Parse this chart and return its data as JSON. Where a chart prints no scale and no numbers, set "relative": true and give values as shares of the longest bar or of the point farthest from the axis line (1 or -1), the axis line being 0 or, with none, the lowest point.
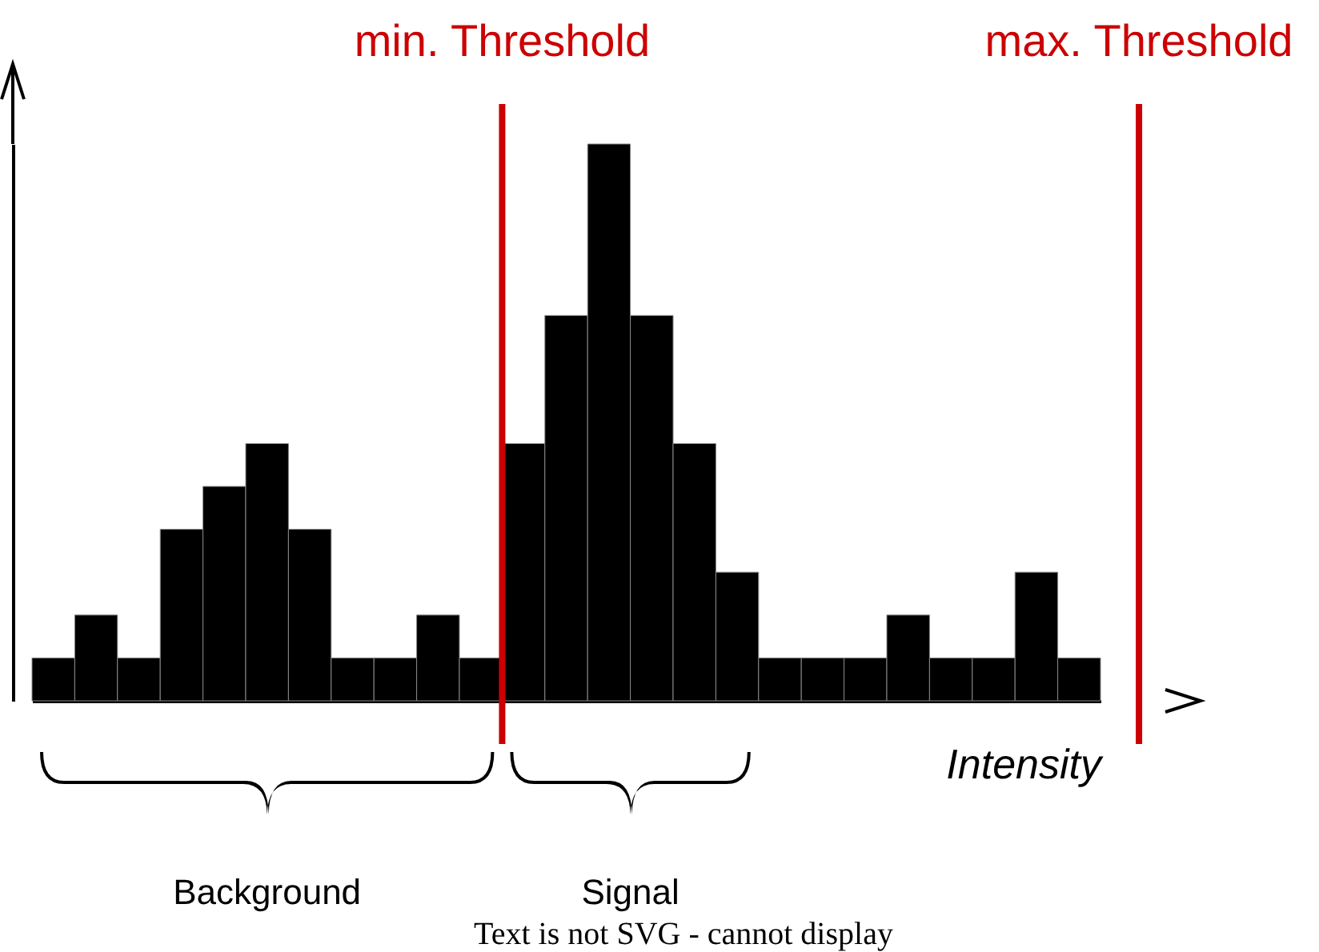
{
  "chart_data": {
    "type": "bar",
    "relative": true,
    "xlabel": "Intensity",
    "color": "#000000",
    "categories": [
      null,
      null,
      null,
      null,
      null,
      null,
      null,
      null,
      null,
      null,
      null,
      null,
      null,
      null,
      null,
      null,
      null,
      null,
      null,
      null,
      null,
      null,
      null,
      null,
      null
    ],
    "values": [
      0.077,
      0.154,
      0.077,
      0.308,
      0.385,
      0.462,
      0.308,
      0.077,
      0.077,
      0.154,
      0.077,
      0.462,
      0.692,
      1,
      0.692,
      0.462,
      0.231,
      0.077,
      0.077,
      0.077,
      0.154,
      0.077,
      0.077,
      0.231,
      0.077
    ],
    "annotations": [
      "min. Threshold",
      "max. Threshold",
      "Background",
      "Signal",
      "Text is not SVG - cannot display"
    ]
  }
}
